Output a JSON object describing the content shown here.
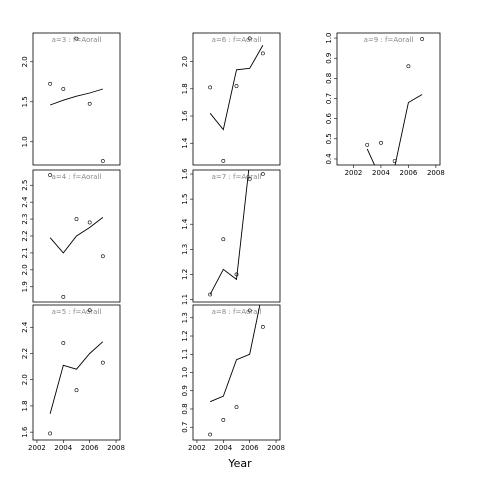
{
  "xlabel": "Year",
  "chart_data": [
    {
      "type": "scatter-line",
      "title": "a=3  :  f=Aorall",
      "x": [
        2003,
        2004,
        2005,
        2006,
        2007
      ],
      "values": [
        1.725,
        1.66,
        2.29,
        1.475,
        0.76
      ],
      "line_values": [
        1.46,
        1.52,
        1.57,
        1.61,
        1.66
      ],
      "xlim": [
        2001.7,
        2008.3
      ],
      "ylim": [
        0.71,
        2.36
      ],
      "yticks": [
        {
          "value": 1.0,
          "label": "1.0"
        },
        1.5,
        {
          "value": 2.0,
          "label": "2.0"
        }
      ]
    },
    {
      "type": "scatter-line",
      "title": "a=4  :  f=Aorall",
      "x": [
        2003,
        2004,
        2005,
        2006,
        2007
      ],
      "values": [
        2.56,
        1.84,
        2.3,
        2.28,
        2.08
      ],
      "line_values": [
        2.19,
        2.1,
        2.2,
        2.25,
        2.31
      ],
      "xlim": [
        2001.7,
        2008.3
      ],
      "ylim": [
        1.81,
        2.59
      ],
      "yticks": [
        1.9,
        {
          "value": 2.0,
          "label": "2.0"
        },
        2.1,
        2.2,
        2.3,
        2.4,
        2.5
      ]
    },
    {
      "type": "scatter-line",
      "title": "a=5  :  f=Aorall",
      "x": [
        2003,
        2004,
        2005,
        2006,
        2007
      ],
      "values": [
        1.59,
        2.28,
        1.92,
        2.53,
        2.13
      ],
      "line_values": [
        1.74,
        2.11,
        2.08,
        2.2,
        2.29
      ],
      "xlim": [
        2001.7,
        2008.3
      ],
      "ylim": [
        1.54,
        2.57
      ],
      "yticks": [
        1.6,
        1.8,
        {
          "value": 2.0,
          "label": "2.0"
        },
        2.2,
        2.4
      ],
      "xticks": [
        2002,
        2004,
        2006,
        2008
      ]
    },
    {
      "type": "scatter-line",
      "title": "a=6  :  f=Aorall",
      "x": [
        2003,
        2004,
        2005,
        2006,
        2007
      ],
      "values": [
        1.81,
        1.27,
        1.82,
        2.17,
        2.06
      ],
      "line_values": [
        1.62,
        1.5,
        1.94,
        1.95,
        2.12
      ],
      "xlim": [
        2001.7,
        2008.3
      ],
      "ylim": [
        1.24,
        2.21
      ],
      "yticks": [
        1.4,
        1.6,
        1.8,
        {
          "value": 2.0,
          "label": "2.0"
        }
      ]
    },
    {
      "type": "scatter-line",
      "title": "a=7  :  f=Aorall",
      "x": [
        2003,
        2004,
        2005,
        2006,
        2007
      ],
      "values": [
        1.12,
        1.34,
        1.2,
        1.58,
        1.6
      ],
      "line_values": [
        1.12,
        1.22,
        1.18,
        1.65,
        1.8
      ],
      "xlim": [
        2001.7,
        2008.3
      ],
      "ylim": [
        1.09,
        1.616
      ],
      "yticks": [
        1.1,
        1.2,
        1.3,
        1.4,
        1.5,
        1.6
      ]
    },
    {
      "type": "scatter-line",
      "title": "a=8  :  f=Aorall",
      "x": [
        2003,
        2004,
        2005,
        2006,
        2007
      ],
      "values": [
        0.66,
        0.74,
        0.81,
        1.34,
        1.25
      ],
      "line_values": [
        0.84,
        0.87,
        1.07,
        1.1,
        1.45
      ],
      "xlim": [
        2001.7,
        2008.3
      ],
      "ylim": [
        0.63,
        1.37
      ],
      "yticks": [
        0.7,
        0.8,
        0.9,
        {
          "value": 1.0,
          "label": "1.0"
        },
        1.1,
        1.2,
        1.3
      ],
      "xticks": [
        2002,
        2004,
        2006,
        2008
      ]
    },
    {
      "type": "scatter-line",
      "title": "a=9  :  f=Aorall",
      "x": [
        2003,
        2004,
        2005,
        2006,
        2007
      ],
      "values": [
        0.47,
        0.48,
        0.39,
        0.86,
        0.995
      ],
      "line_values": [
        0.45,
        0.3,
        0.36,
        0.68,
        0.72
      ],
      "xlim": [
        2000.8,
        2008.3
      ],
      "ylim": [
        0.37,
        1.025
      ],
      "yticks": [
        0.4,
        0.5,
        0.6,
        0.7,
        0.8,
        0.9,
        {
          "value": 1.0,
          "label": "1.0"
        }
      ],
      "xticks": [
        2002,
        2004,
        2006,
        2008
      ]
    }
  ]
}
